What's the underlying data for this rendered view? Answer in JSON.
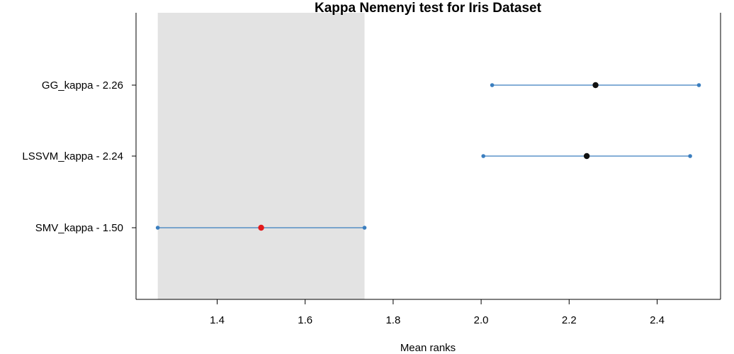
{
  "chart_data": {
    "type": "interval",
    "title": "Kappa Nemenyi test for Iris Dataset",
    "xlabel": "Mean ranks",
    "ylabel": "",
    "xlim": [
      1.26,
      2.5
    ],
    "x_ticks": [
      "1.4",
      "1.6",
      "1.8",
      "2.0",
      "2.2",
      "2.4"
    ],
    "critical_region": [
      1.265,
      1.735
    ],
    "grid": false,
    "series": [
      {
        "label": "GG_kappa - 2.26",
        "mean": 2.26,
        "low": 2.025,
        "high": 2.495,
        "highlight": false
      },
      {
        "label": "LSSVM_kappa - 2.24",
        "mean": 2.24,
        "low": 2.005,
        "high": 2.475,
        "highlight": false
      },
      {
        "label": "SMV_kappa - 1.50",
        "mean": 1.5,
        "low": 1.265,
        "high": 1.735,
        "highlight": true
      }
    ]
  },
  "colors": {
    "interval_line": "#3a7ebf",
    "endpoint": "#3a7ebf",
    "mean_point": "#111111",
    "best_point": "#e31a1c",
    "critical_region": "#e3e3e3",
    "frame": "#000000"
  }
}
